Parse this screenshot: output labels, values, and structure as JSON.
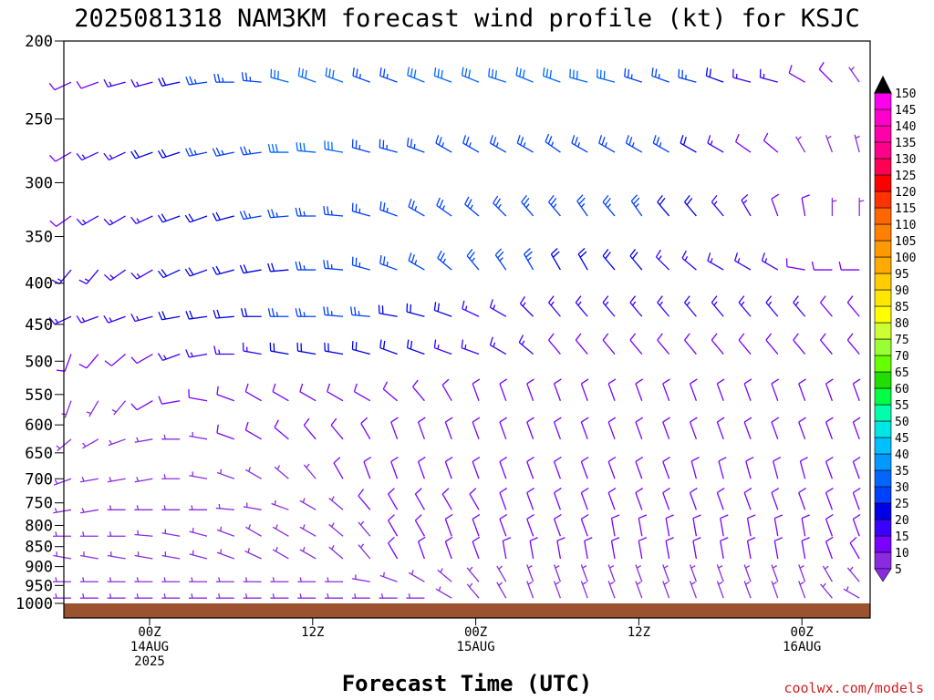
{
  "chart_data": {
    "type": "wind-barb-profile",
    "title": "2025081318 NAM3KM forecast wind profile (kt) for KSJC",
    "xlabel": "Forecast Time (UTC)",
    "credit": "coolwx.com/models",
    "y_axis": {
      "label": "",
      "scale": "log",
      "ylim": [
        1000,
        200
      ],
      "ticks": [
        200,
        250,
        300,
        350,
        400,
        450,
        500,
        550,
        600,
        650,
        700,
        750,
        800,
        850,
        900,
        950,
        1000
      ]
    },
    "x_axis": {
      "range": [
        "2025-08-13 18Z",
        "2025-08-16 12Z"
      ],
      "ticks": [
        {
          "time": "2025-08-14 00Z",
          "line1": "00Z",
          "line2": "14AUG",
          "line3": "2025"
        },
        {
          "time": "2025-08-14 12Z",
          "line1": "12Z",
          "line2": "",
          "line3": ""
        },
        {
          "time": "2025-08-15 00Z",
          "line1": "00Z",
          "line2": "15AUG",
          "line3": ""
        },
        {
          "time": "2025-08-15 12Z",
          "line1": "12Z",
          "line2": "",
          "line3": ""
        },
        {
          "time": "2025-08-16 00Z",
          "line1": "00Z",
          "line2": "16AUG",
          "line3": ""
        }
      ]
    },
    "colorbar": {
      "units": "kt",
      "levels": [
        5,
        10,
        15,
        20,
        25,
        30,
        35,
        40,
        45,
        50,
        55,
        60,
        65,
        70,
        75,
        80,
        85,
        90,
        95,
        100,
        105,
        110,
        115,
        120,
        125,
        130,
        135,
        140,
        145,
        150
      ],
      "colors": [
        "#8a2be2",
        "#7a00ff",
        "#3a00ff",
        "#0000e6",
        "#0040ff",
        "#0066ff",
        "#0099ff",
        "#00c0ff",
        "#00e6e6",
        "#00ffaa",
        "#00ff44",
        "#22dd00",
        "#66ff00",
        "#99ff33",
        "#ccff33",
        "#ffff00",
        "#ffe600",
        "#ffcc00",
        "#ffaa00",
        "#ff9900",
        "#ff8000",
        "#ff6600",
        "#ff3300",
        "#ff0000",
        "#ff0055",
        "#ff0088",
        "#ff00aa",
        "#ff00cc",
        "#ff00ee",
        "#ff00ff"
      ]
    },
    "legend": "right colorbar",
    "grid": false,
    "hours_per_column": 2,
    "profiles": [
      {
        "p": 225,
        "dir": [
          245,
          250,
          255,
          255,
          258,
          262,
          270,
          275,
          285,
          290,
          290,
          290,
          290,
          292,
          290,
          292,
          288,
          292,
          290,
          285,
          285,
          288,
          290,
          285,
          290,
          285,
          285,
          300,
          315,
          325,
          340,
          0,
          20,
          40,
          60,
          70,
          50,
          45
        ],
        "spd": [
          12,
          12,
          15,
          18,
          22,
          25,
          25,
          28,
          30,
          30,
          30,
          28,
          28,
          30,
          30,
          30,
          30,
          30,
          30,
          30,
          30,
          28,
          28,
          25,
          20,
          18,
          15,
          12,
          10,
          8,
          7,
          6,
          6,
          6,
          6,
          6,
          7,
          8
        ]
      },
      {
        "p": 275,
        "dir": [
          240,
          245,
          245,
          250,
          252,
          258,
          258,
          262,
          270,
          275,
          280,
          285,
          285,
          290,
          300,
          300,
          300,
          300,
          305,
          300,
          300,
          300,
          300,
          300,
          300,
          305,
          310,
          330,
          340,
          345,
          350,
          0,
          10,
          20,
          30,
          40,
          40,
          50
        ],
        "spd": [
          12,
          15,
          18,
          20,
          22,
          25,
          25,
          28,
          30,
          32,
          30,
          28,
          28,
          28,
          28,
          28,
          28,
          28,
          28,
          28,
          28,
          28,
          25,
          22,
          18,
          12,
          10,
          8,
          8,
          7,
          6,
          6,
          7,
          7,
          7,
          7,
          8,
          10
        ]
      },
      {
        "p": 330,
        "dir": [
          235,
          240,
          240,
          245,
          250,
          250,
          255,
          260,
          265,
          270,
          275,
          285,
          290,
          300,
          305,
          310,
          315,
          320,
          320,
          325,
          320,
          325,
          320,
          320,
          320,
          330,
          340,
          350,
          0,
          0,
          10,
          20,
          40,
          60,
          80,
          100,
          100,
          100
        ],
        "spd": [
          12,
          15,
          15,
          18,
          20,
          22,
          22,
          25,
          25,
          28,
          28,
          28,
          28,
          28,
          28,
          28,
          28,
          28,
          28,
          28,
          25,
          25,
          22,
          20,
          18,
          15,
          12,
          10,
          8,
          8,
          7,
          7,
          8,
          8,
          10,
          10,
          10,
          10
        ]
      },
      {
        "p": 385,
        "dir": [
          220,
          220,
          235,
          240,
          245,
          250,
          255,
          260,
          265,
          270,
          275,
          285,
          290,
          300,
          310,
          320,
          325,
          330,
          330,
          330,
          320,
          320,
          315,
          310,
          300,
          300,
          300,
          280,
          270,
          270,
          270,
          270,
          270,
          270,
          270,
          270,
          270,
          270
        ],
        "spd": [
          15,
          15,
          15,
          18,
          20,
          20,
          22,
          22,
          22,
          25,
          25,
          25,
          25,
          25,
          25,
          25,
          25,
          25,
          22,
          22,
          20,
          20,
          18,
          18,
          15,
          15,
          15,
          12,
          12,
          12,
          12,
          12,
          12,
          12,
          12,
          12,
          12,
          12
        ]
      },
      {
        "p": 440,
        "dir": [
          245,
          250,
          250,
          255,
          260,
          262,
          265,
          270,
          270,
          270,
          275,
          275,
          280,
          285,
          290,
          295,
          300,
          315,
          320,
          320,
          320,
          320,
          320,
          320,
          320,
          320,
          320,
          320,
          320,
          320,
          320,
          320,
          320,
          320,
          320,
          320,
          320,
          320
        ],
        "spd": [
          15,
          15,
          18,
          18,
          20,
          20,
          22,
          22,
          25,
          25,
          25,
          25,
          22,
          22,
          20,
          18,
          18,
          15,
          15,
          15,
          15,
          15,
          15,
          15,
          15,
          15,
          15,
          15,
          12,
          12,
          12,
          12,
          12,
          12,
          12,
          12,
          12,
          12
        ]
      },
      {
        "p": 490,
        "dir": [
          200,
          220,
          230,
          240,
          250,
          260,
          270,
          280,
          280,
          280,
          280,
          285,
          290,
          290,
          290,
          290,
          300,
          310,
          320,
          320,
          320,
          320,
          320,
          320,
          320,
          320,
          320,
          320,
          320,
          320,
          320,
          310,
          310,
          310,
          310,
          310,
          310,
          310
        ],
        "spd": [
          10,
          10,
          12,
          12,
          15,
          15,
          18,
          18,
          20,
          20,
          20,
          20,
          20,
          20,
          18,
          18,
          15,
          15,
          12,
          12,
          12,
          12,
          12,
          12,
          12,
          12,
          12,
          12,
          12,
          12,
          12,
          12,
          12,
          12,
          12,
          12,
          12,
          12
        ]
      },
      {
        "p": 560,
        "dir": [
          200,
          210,
          220,
          240,
          260,
          280,
          290,
          300,
          300,
          300,
          300,
          300,
          310,
          320,
          330,
          340,
          340,
          340,
          340,
          340,
          340,
          340,
          340,
          340,
          340,
          340,
          340,
          340,
          340,
          340,
          340,
          340,
          330,
          330,
          330,
          330,
          330,
          330
        ],
        "spd": [
          8,
          8,
          8,
          10,
          10,
          10,
          10,
          10,
          10,
          10,
          10,
          10,
          10,
          10,
          10,
          10,
          10,
          10,
          10,
          10,
          10,
          10,
          10,
          10,
          10,
          10,
          10,
          10,
          10,
          10,
          10,
          10,
          10,
          10,
          10,
          10,
          10,
          10
        ]
      },
      {
        "p": 625,
        "dir": [
          230,
          240,
          250,
          260,
          270,
          280,
          290,
          300,
          310,
          320,
          320,
          330,
          340,
          340,
          340,
          340,
          340,
          340,
          340,
          340,
          340,
          340,
          340,
          340,
          340,
          340,
          340,
          340,
          340,
          340,
          340,
          340,
          330,
          330,
          320,
          320,
          320,
          320
        ],
        "spd": [
          8,
          8,
          8,
          8,
          8,
          8,
          10,
          10,
          10,
          10,
          10,
          10,
          10,
          10,
          10,
          10,
          10,
          10,
          10,
          10,
          10,
          10,
          10,
          10,
          10,
          10,
          10,
          10,
          10,
          10,
          10,
          10,
          10,
          10,
          10,
          10,
          10,
          10
        ]
      },
      {
        "p": 700,
        "dir": [
          250,
          260,
          260,
          260,
          270,
          280,
          290,
          300,
          310,
          320,
          330,
          340,
          340,
          340,
          340,
          340,
          340,
          340,
          340,
          340,
          340,
          340,
          340,
          345,
          345,
          345,
          345,
          345,
          340,
          340,
          330,
          320,
          310,
          300,
          300,
          300,
          300,
          300
        ],
        "spd": [
          8,
          8,
          8,
          8,
          8,
          8,
          8,
          8,
          8,
          8,
          10,
          10,
          10,
          10,
          10,
          10,
          10,
          10,
          10,
          12,
          12,
          12,
          12,
          12,
          12,
          12,
          12,
          12,
          12,
          12,
          12,
          12,
          12,
          12,
          12,
          12,
          12,
          12
        ]
      },
      {
        "p": 765,
        "dir": [
          260,
          260,
          270,
          270,
          270,
          270,
          275,
          280,
          290,
          300,
          310,
          320,
          330,
          330,
          330,
          330,
          340,
          340,
          340,
          340,
          340,
          340,
          340,
          340,
          340,
          340,
          340,
          340,
          340,
          340,
          330,
          320,
          310,
          300,
          300,
          300,
          290,
          290
        ],
        "spd": [
          8,
          8,
          8,
          8,
          8,
          8,
          8,
          8,
          8,
          8,
          8,
          10,
          10,
          10,
          10,
          10,
          10,
          10,
          10,
          12,
          12,
          12,
          12,
          12,
          12,
          12,
          12,
          12,
          12,
          12,
          12,
          12,
          12,
          12,
          15,
          15,
          18,
          20
        ]
      },
      {
        "p": 825,
        "dir": [
          270,
          270,
          270,
          275,
          280,
          285,
          290,
          300,
          300,
          300,
          310,
          320,
          330,
          330,
          340,
          340,
          340,
          340,
          340,
          340,
          350,
          350,
          350,
          350,
          350,
          350,
          350,
          350,
          340,
          340,
          330,
          320,
          310,
          300,
          300,
          290,
          280,
          280
        ],
        "spd": [
          8,
          8,
          8,
          8,
          8,
          8,
          8,
          8,
          8,
          8,
          8,
          8,
          10,
          10,
          10,
          10,
          10,
          10,
          10,
          12,
          12,
          12,
          12,
          12,
          12,
          12,
          12,
          12,
          12,
          12,
          12,
          12,
          12,
          15,
          18,
          20,
          22,
          25
        ]
      },
      {
        "p": 880,
        "dir": [
          280,
          280,
          280,
          280,
          280,
          285,
          290,
          295,
          300,
          300,
          310,
          320,
          330,
          340,
          340,
          340,
          350,
          350,
          350,
          350,
          350,
          350,
          350,
          350,
          350,
          350,
          350,
          350,
          340,
          330,
          320,
          310,
          300,
          290,
          280,
          280,
          270,
          270
        ],
        "spd": [
          7,
          7,
          7,
          7,
          7,
          8,
          8,
          8,
          8,
          8,
          8,
          8,
          10,
          10,
          10,
          12,
          12,
          12,
          12,
          12,
          12,
          12,
          12,
          12,
          12,
          12,
          12,
          12,
          12,
          12,
          12,
          12,
          15,
          18,
          20,
          22,
          25,
          28
        ]
      },
      {
        "p": 940,
        "dir": [
          270,
          270,
          270,
          270,
          270,
          270,
          270,
          270,
          270,
          270,
          270,
          280,
          290,
          300,
          310,
          320,
          330,
          340,
          340,
          340,
          340,
          340,
          340,
          340,
          340,
          340,
          340,
          340,
          330,
          320,
          310,
          300,
          290,
          290,
          280,
          280,
          270,
          270
        ],
        "spd": [
          7,
          7,
          7,
          7,
          7,
          7,
          7,
          7,
          7,
          7,
          7,
          7,
          7,
          7,
          7,
          8,
          8,
          8,
          8,
          8,
          8,
          8,
          8,
          8,
          8,
          8,
          8,
          8,
          8,
          8,
          8,
          8,
          10,
          12,
          15,
          18,
          20,
          22
        ]
      },
      {
        "p": 985,
        "dir": [
          270,
          270,
          270,
          270,
          270,
          270,
          270,
          270,
          270,
          270,
          270,
          270,
          270,
          270,
          300,
          320,
          330,
          340,
          340,
          340,
          340,
          340,
          340,
          340,
          340,
          340,
          340,
          340,
          320,
          300,
          290,
          280,
          270,
          270,
          270,
          270,
          270,
          270
        ],
        "spd": [
          5,
          5,
          5,
          5,
          5,
          5,
          5,
          5,
          5,
          5,
          5,
          5,
          5,
          5,
          5,
          5,
          5,
          5,
          5,
          5,
          5,
          5,
          5,
          5,
          5,
          5,
          5,
          5,
          5,
          5,
          5,
          5,
          5,
          5,
          5,
          5,
          5,
          5
        ]
      }
    ]
  }
}
